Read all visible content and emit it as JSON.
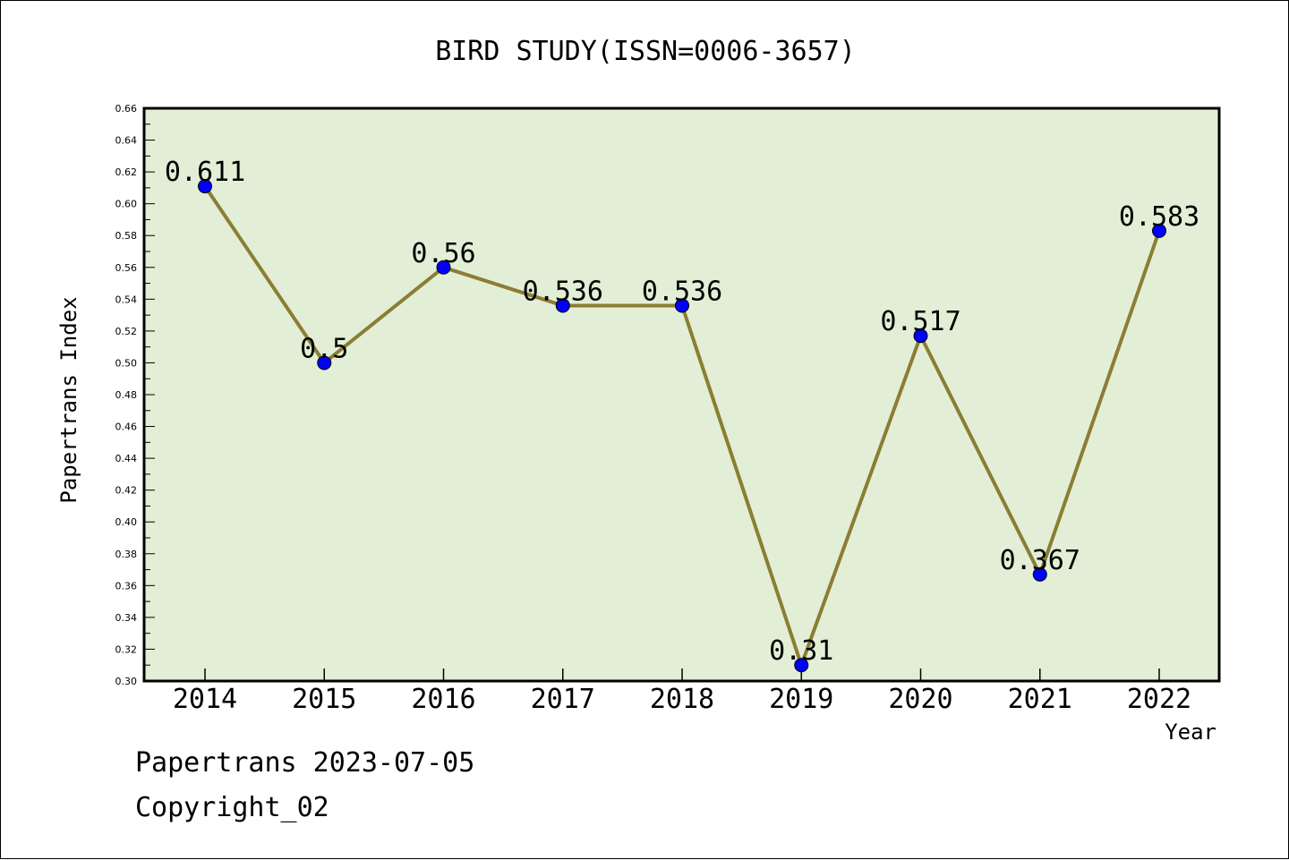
{
  "chart_data": {
    "type": "line",
    "title": "BIRD STUDY(ISSN=0006-3657)",
    "xlabel": "Year",
    "ylabel": "Papertrans Index",
    "categories": [
      "2014",
      "2015",
      "2016",
      "2017",
      "2018",
      "2019",
      "2020",
      "2021",
      "2022"
    ],
    "series": [
      {
        "values": [
          0.611,
          0.5,
          0.56,
          0.536,
          0.536,
          0.31,
          0.517,
          0.367,
          0.583
        ],
        "data_labels": [
          "0.611",
          "0.5",
          "0.56",
          "0.536",
          "0.536",
          "0.31",
          "0.517",
          "0.367",
          "0.583"
        ]
      }
    ],
    "ylim": [
      0.3,
      0.66
    ],
    "yticks": [
      "0.30",
      "0.32",
      "0.34",
      "0.36",
      "0.38",
      "0.40",
      "0.42",
      "0.44",
      "0.46",
      "0.48",
      "0.50",
      "0.52",
      "0.54",
      "0.56",
      "0.58",
      "0.60",
      "0.62",
      "0.64",
      "0.66"
    ],
    "grid": false,
    "legend": "none",
    "colors": {
      "plot_background": "#e2efd6",
      "line": "#8b7d35",
      "marker": "#0000ff"
    }
  },
  "footer": {
    "line1": "Papertrans 2023-07-05",
    "line2": "Copyright_02"
  }
}
